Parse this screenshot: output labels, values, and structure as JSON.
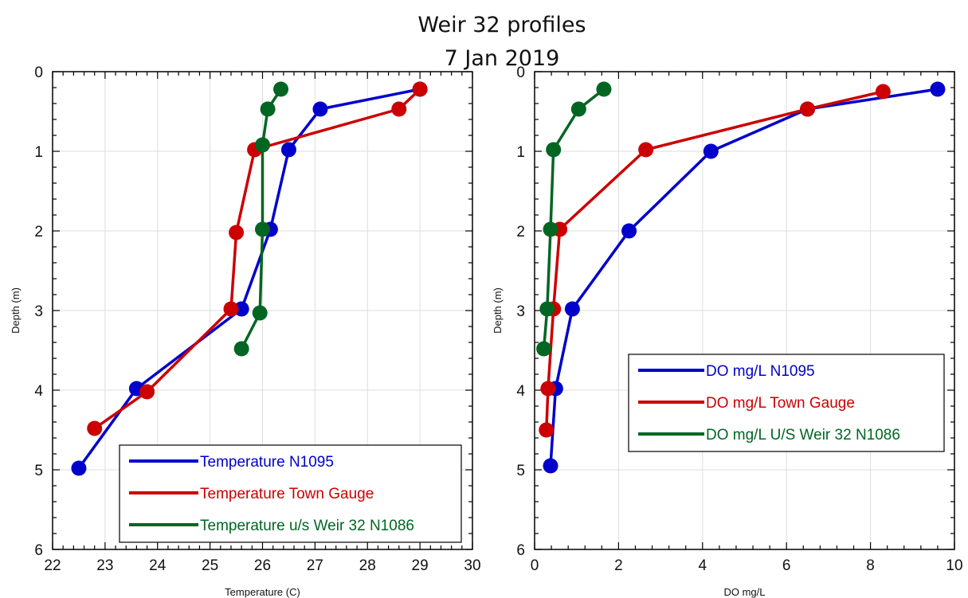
{
  "figure": {
    "title_line1": "Weir 32 profiles",
    "title_line2": "7 Jan 2019"
  },
  "chart_data": [
    {
      "type": "line",
      "xlabel": "Temperature (C)",
      "ylabel": "Depth (m)",
      "xlim": [
        22,
        30
      ],
      "ylim": [
        0,
        6
      ],
      "y_inverted": true,
      "grid": true,
      "xticks": [
        "22",
        "23",
        "24",
        "25",
        "26",
        "27",
        "28",
        "29",
        "30"
      ],
      "yticks": [
        "0",
        "1",
        "2",
        "3",
        "4",
        "5",
        "6"
      ],
      "legend_position": "bottom-right",
      "series": [
        {
          "name": "Temperature N1095",
          "color": "#0000cc",
          "points": [
            [
              29.0,
              0.22
            ],
            [
              27.1,
              0.47
            ],
            [
              26.5,
              0.98
            ],
            [
              26.15,
              1.98
            ],
            [
              25.6,
              2.98
            ],
            [
              23.6,
              3.98
            ],
            [
              22.5,
              4.98
            ]
          ]
        },
        {
          "name": "Temperature Town Gauge",
          "color": "#cc0000",
          "points": [
            [
              29.0,
              0.22
            ],
            [
              28.6,
              0.47
            ],
            [
              25.85,
              0.98
            ],
            [
              25.5,
              2.02
            ],
            [
              25.4,
              2.98
            ],
            [
              23.8,
              4.02
            ],
            [
              22.8,
              4.48
            ]
          ]
        },
        {
          "name": "Temperature u/s Weir 32 N1086",
          "color": "#006622",
          "points": [
            [
              26.35,
              0.22
            ],
            [
              26.1,
              0.47
            ],
            [
              26.0,
              0.92
            ],
            [
              26.0,
              1.98
            ],
            [
              25.95,
              3.03
            ],
            [
              25.6,
              3.48
            ]
          ]
        }
      ]
    },
    {
      "type": "line",
      "xlabel": "DO mg/L",
      "ylabel": "Depth (m)",
      "xlim": [
        0,
        10
      ],
      "ylim": [
        0,
        6
      ],
      "y_inverted": true,
      "grid": true,
      "xticks": [
        "0",
        "2",
        "4",
        "6",
        "8",
        "10"
      ],
      "yticks": [
        "0",
        "1",
        "2",
        "3",
        "4",
        "5",
        "6"
      ],
      "legend_position": "middle-right",
      "series": [
        {
          "name": "DO mg/L N1095",
          "color": "#0000cc",
          "points": [
            [
              9.6,
              0.22
            ],
            [
              6.5,
              0.47
            ],
            [
              4.2,
              1.0
            ],
            [
              2.25,
              2.0
            ],
            [
              0.9,
              2.98
            ],
            [
              0.5,
              3.98
            ],
            [
              0.38,
              4.95
            ]
          ]
        },
        {
          "name": "DO mg/L Town Gauge",
          "color": "#cc0000",
          "points": [
            [
              8.3,
              0.25
            ],
            [
              6.5,
              0.47
            ],
            [
              2.65,
              0.98
            ],
            [
              0.6,
              1.98
            ],
            [
              0.45,
              2.98
            ],
            [
              0.32,
              3.98
            ],
            [
              0.28,
              4.5
            ]
          ]
        },
        {
          "name": "DO mg/L U/S Weir 32 N1086",
          "color": "#006622",
          "points": [
            [
              1.65,
              0.22
            ],
            [
              1.05,
              0.47
            ],
            [
              0.45,
              0.98
            ],
            [
              0.38,
              1.98
            ],
            [
              0.3,
              2.98
            ],
            [
              0.22,
              3.48
            ]
          ]
        }
      ]
    }
  ]
}
